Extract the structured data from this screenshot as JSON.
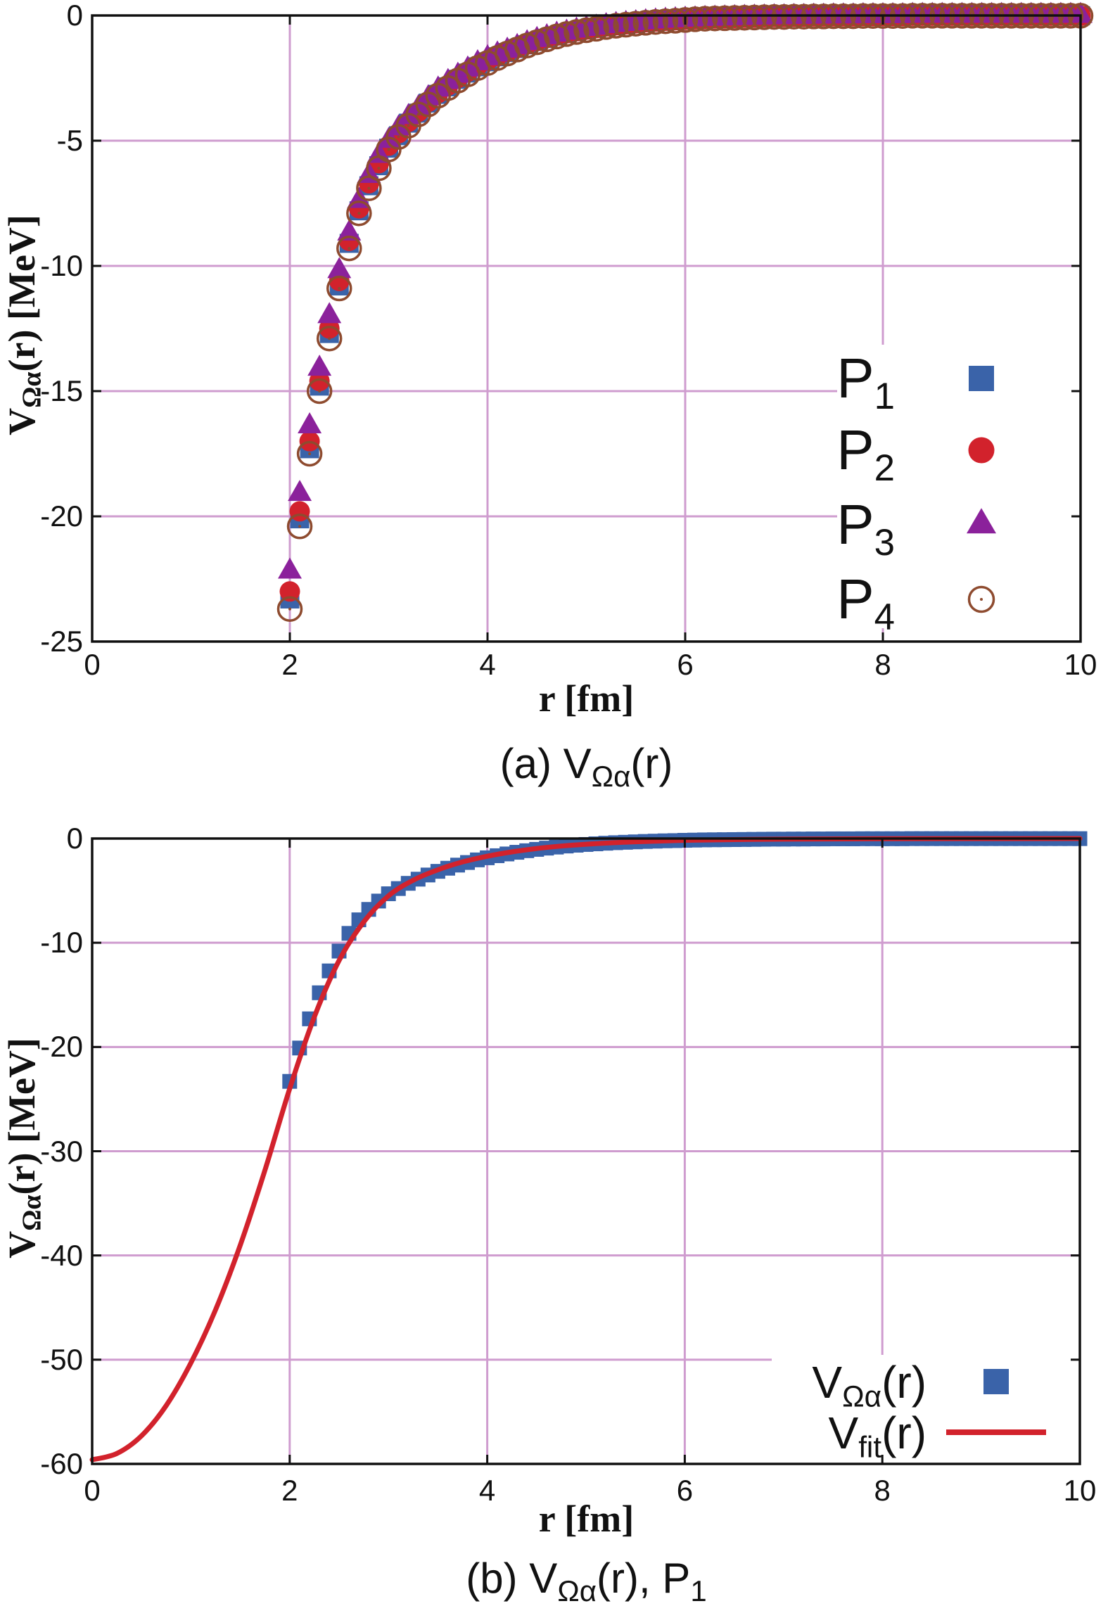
{
  "figure": {
    "background": "#ffffff",
    "description": "Two-panel gnuplot figure of the Omega-alpha potential"
  },
  "colors": {
    "blue": "#3a63a9",
    "red": "#d2222c",
    "purple": "#8b219b",
    "brown": "#8e4b2f",
    "grid": "#cf9ccf",
    "border": "#111111"
  },
  "labels": {
    "x_axis": "r [fm]",
    "y_axis": {
      "v": "V",
      "sub": "Ωα",
      "rest": "(r) [MeV]"
    }
  },
  "captions": {
    "a": {
      "p1": "(a) V",
      "sub1": "Ωα",
      "p2": "(r)"
    },
    "b": {
      "p1": "(b) V",
      "sub1": "Ωα",
      "p2": "(r), P",
      "sub2": "1"
    }
  },
  "legend_a": [
    {
      "main": "P",
      "sub": "1"
    },
    {
      "main": "P",
      "sub": "2"
    },
    {
      "main": "P",
      "sub": "3"
    },
    {
      "main": "P",
      "sub": "4"
    }
  ],
  "legend_b": [
    {
      "main": "V",
      "sub": "Ωα",
      "rest": "(r)"
    },
    {
      "main": "V",
      "sub": "fit",
      "rest": "(r)"
    }
  ],
  "chart_data": [
    {
      "type": "scatter",
      "title": "(a) V_Ωα(r)",
      "xlabel": "r [fm]",
      "ylabel": "V_Ωα(r) [MeV]",
      "xlim": [
        0,
        10
      ],
      "ylim": [
        -25,
        0
      ],
      "xticks": [
        0,
        2,
        4,
        6,
        8,
        10
      ],
      "yticks": [
        0,
        -5,
        -10,
        -15,
        -20,
        -25
      ],
      "xtick_labels": [
        "0",
        "2",
        "4",
        "6",
        "8",
        "10"
      ],
      "ytick_labels": [
        "0",
        "-5",
        "-10",
        "-15",
        "-20",
        "-25"
      ],
      "grid": true,
      "legend_position": "right-center",
      "r_start": 2.0,
      "r_step": 0.1,
      "r_tail_start": 6.1,
      "shared_tail": [
        -0.15,
        -0.13,
        -0.12,
        -0.11,
        -0.1,
        -0.09,
        -0.08,
        -0.07,
        -0.06,
        -0.06,
        -0.05,
        -0.05,
        -0.04,
        -0.04,
        -0.03,
        -0.03,
        -0.03,
        -0.02,
        -0.02,
        -0.02,
        -0.02,
        -0.02,
        -0.01,
        -0.01,
        -0.01,
        -0.01,
        -0.01,
        -0.01,
        -0.01,
        -0.01,
        -0.01,
        -0.01,
        -0.01,
        -0.01,
        -0.01,
        -0.01,
        -0.01,
        -0.01,
        -0.01,
        -0.01
      ],
      "series": [
        {
          "name": "P1",
          "marker": "square",
          "color_key": "blue",
          "values": [
            -23.3,
            -20.1,
            -17.3,
            -14.8,
            -12.7,
            -10.8,
            -9.1,
            -7.8,
            -6.8,
            -6.0,
            -5.3,
            -4.8,
            -4.3,
            -3.9,
            -3.5,
            -3.15,
            -2.85,
            -2.55,
            -2.3,
            -2.05,
            -1.85,
            -1.65,
            -1.48,
            -1.32,
            -1.17,
            -1.04,
            -0.92,
            -0.82,
            -0.72,
            -0.64,
            -0.57,
            -0.51,
            -0.45,
            -0.4,
            -0.36,
            -0.32,
            -0.28,
            -0.25,
            -0.22,
            -0.2,
            -0.17
          ]
        },
        {
          "name": "P2",
          "marker": "circle",
          "color_key": "red",
          "values": [
            -23.0,
            -19.8,
            -17.0,
            -14.6,
            -12.5,
            -10.6,
            -9.0,
            -7.7,
            -6.7,
            -5.9,
            -5.2,
            -4.7,
            -4.25,
            -3.85,
            -3.45,
            -3.1,
            -2.8,
            -2.5,
            -2.25,
            -2.0,
            -1.8,
            -1.62,
            -1.45,
            -1.3,
            -1.15,
            -1.02,
            -0.9,
            -0.8,
            -0.71,
            -0.63,
            -0.56,
            -0.5,
            -0.44,
            -0.39,
            -0.35,
            -0.31,
            -0.27,
            -0.24,
            -0.21,
            -0.19,
            -0.17
          ]
        },
        {
          "name": "P3",
          "marker": "triangle",
          "color_key": "purple",
          "values": [
            -22.2,
            -19.1,
            -16.4,
            -14.1,
            -12.0,
            -10.2,
            -8.7,
            -7.4,
            -6.4,
            -5.6,
            -5.0,
            -4.5,
            -4.05,
            -3.7,
            -3.3,
            -2.95,
            -2.65,
            -2.4,
            -2.15,
            -1.9,
            -1.7,
            -1.55,
            -1.4,
            -1.25,
            -1.1,
            -0.97,
            -0.86,
            -0.76,
            -0.68,
            -0.6,
            -0.53,
            -0.48,
            -0.42,
            -0.37,
            -0.33,
            -0.3,
            -0.26,
            -0.23,
            -0.2,
            -0.18,
            -0.16
          ]
        },
        {
          "name": "P4",
          "marker": "open-circle",
          "color_key": "brown",
          "values": [
            -23.7,
            -20.4,
            -17.5,
            -15.0,
            -12.9,
            -10.9,
            -9.3,
            -7.9,
            -6.9,
            -6.1,
            -5.35,
            -4.85,
            -4.4,
            -3.95,
            -3.55,
            -3.2,
            -2.9,
            -2.6,
            -2.35,
            -2.1,
            -1.9,
            -1.7,
            -1.52,
            -1.36,
            -1.2,
            -1.07,
            -0.95,
            -0.84,
            -0.74,
            -0.66,
            -0.59,
            -0.53,
            -0.46,
            -0.41,
            -0.37,
            -0.33,
            -0.29,
            -0.26,
            -0.23,
            -0.21,
            -0.18
          ]
        }
      ]
    },
    {
      "type": "scatter+line",
      "title": "(b) V_Ωα(r), P_1",
      "xlabel": "r [fm]",
      "ylabel": "V_Ωα(r) [MeV]",
      "xlim": [
        0,
        10
      ],
      "ylim": [
        -60,
        0
      ],
      "xticks": [
        0,
        2,
        4,
        6,
        8,
        10
      ],
      "yticks": [
        0,
        -10,
        -20,
        -30,
        -40,
        -50,
        -60
      ],
      "xtick_labels": [
        "0",
        "2",
        "4",
        "6",
        "8",
        "10"
      ],
      "ytick_labels": [
        "0",
        "-10",
        "-20",
        "-30",
        "-40",
        "-50",
        "-60"
      ],
      "grid": true,
      "legend_position": "bottom-right",
      "r_start": 2.0,
      "r_step": 0.1,
      "r_tail_start": 6.1,
      "shared_tail": [
        -0.15,
        -0.13,
        -0.12,
        -0.11,
        -0.1,
        -0.09,
        -0.08,
        -0.07,
        -0.06,
        -0.06,
        -0.05,
        -0.05,
        -0.04,
        -0.04,
        -0.03,
        -0.03,
        -0.03,
        -0.02,
        -0.02,
        -0.02,
        -0.02,
        -0.02,
        -0.01,
        -0.01,
        -0.01,
        -0.01,
        -0.01,
        -0.01,
        -0.01,
        -0.01,
        -0.01,
        -0.01,
        -0.01,
        -0.01,
        -0.01,
        -0.01,
        -0.01,
        -0.01,
        -0.01,
        -0.01
      ],
      "series": [
        {
          "name": "V_Ωα(r)",
          "marker": "square",
          "color_key": "blue",
          "values": [
            -23.3,
            -20.1,
            -17.3,
            -14.8,
            -12.7,
            -10.8,
            -9.1,
            -7.8,
            -6.8,
            -6.0,
            -5.3,
            -4.8,
            -4.3,
            -3.9,
            -3.5,
            -3.15,
            -2.85,
            -2.55,
            -2.3,
            -2.05,
            -1.85,
            -1.65,
            -1.48,
            -1.32,
            -1.17,
            -1.04,
            -0.92,
            -0.82,
            -0.72,
            -0.64,
            -0.57,
            -0.51,
            -0.45,
            -0.4,
            -0.36,
            -0.32,
            -0.28,
            -0.25,
            -0.22,
            -0.2,
            -0.17
          ]
        }
      ],
      "fit_curve": {
        "name": "V_fit(r)",
        "color_key": "red",
        "r": [
          0,
          0.25,
          0.5,
          0.75,
          1,
          1.25,
          1.5,
          1.75,
          2,
          2.25,
          2.5,
          2.75,
          3,
          3.25,
          3.5,
          3.75,
          4,
          4.25,
          4.5,
          4.75,
          5,
          5.5,
          6,
          6.5,
          7,
          8,
          9,
          10
        ],
        "v": [
          -59.6,
          -59.0,
          -57.3,
          -54.4,
          -50.3,
          -45.2,
          -39.0,
          -31.8,
          -24.0,
          -17.1,
          -11.7,
          -8.0,
          -5.5,
          -4.0,
          -3.0,
          -2.25,
          -1.7,
          -1.28,
          -0.96,
          -0.72,
          -0.55,
          -0.31,
          -0.17,
          -0.1,
          -0.06,
          -0.02,
          -0.01,
          0.0
        ]
      }
    }
  ]
}
